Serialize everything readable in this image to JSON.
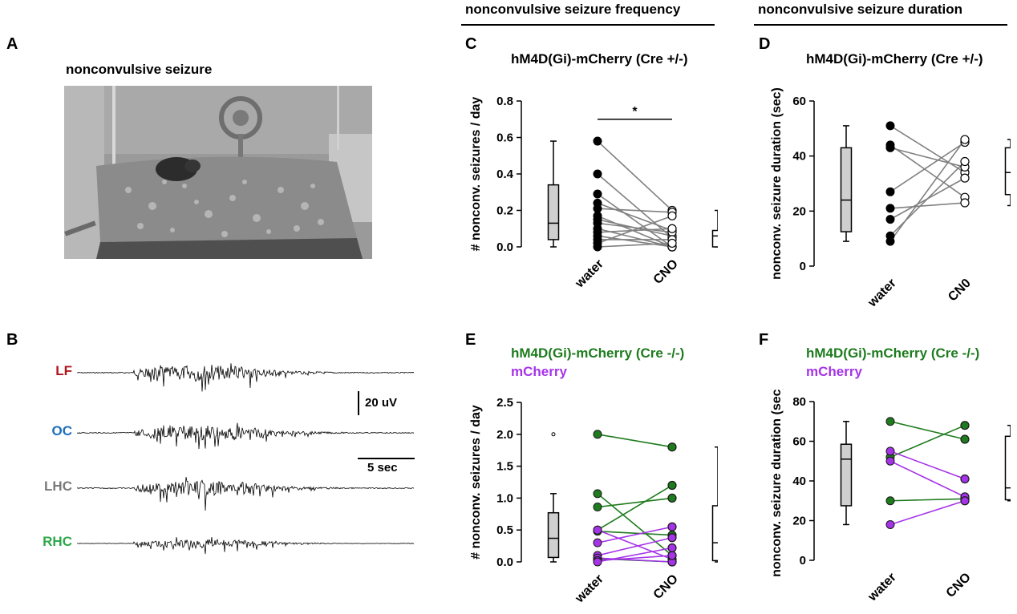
{
  "panels": {
    "A": "A",
    "B": "B",
    "C": "C",
    "D": "D",
    "E": "E",
    "F": "F"
  },
  "section_headers": {
    "frequency": "nonconvulsive seizure frequency",
    "duration": "nonconvulsive seizure duration"
  },
  "panelA": {
    "title": "nonconvulsive seizure"
  },
  "panelB": {
    "channels": [
      {
        "name": "LF",
        "color": "#b3141c"
      },
      {
        "name": "OC",
        "color": "#1f6fba"
      },
      {
        "name": "LHC",
        "color": "#7a7a7a"
      },
      {
        "name": "RHC",
        "color": "#2ea84a"
      }
    ],
    "scale_amplitude": "20 uV",
    "scale_time": "5 sec"
  },
  "colors": {
    "green": "#1e7b1e",
    "purple": "#a533e8",
    "box_fill": "#cfcfcf"
  },
  "chart_data": [
    {
      "id": "C",
      "type": "scatter",
      "title": "hM4D(Gi)-mCherry (Cre +/-)",
      "ylabel": "# nonconv. seizures / day",
      "xlabel": "",
      "categories": [
        "water",
        "CNO"
      ],
      "ylim": [
        0,
        0.8
      ],
      "yticks": [
        "0.0",
        "0.2",
        "0.4",
        "0.6",
        "0.8"
      ],
      "significance": "*",
      "pairs": [
        [
          0.58,
          0.2
        ],
        [
          0.4,
          0.05
        ],
        [
          0.29,
          0.0
        ],
        [
          0.24,
          0.09
        ],
        [
          0.21,
          0.19
        ],
        [
          0.17,
          0.0
        ],
        [
          0.15,
          0.06
        ],
        [
          0.13,
          0.08
        ],
        [
          0.1,
          0.0
        ],
        [
          0.08,
          0.1
        ],
        [
          0.06,
          0.0
        ],
        [
          0.04,
          0.04
        ],
        [
          0.02,
          0.17
        ],
        [
          0.0,
          0.02
        ]
      ],
      "boxes": {
        "water": {
          "min": 0.0,
          "q1": 0.04,
          "median": 0.13,
          "q3": 0.34,
          "max": 0.58,
          "fill": "gray"
        },
        "CNO": {
          "min": 0.0,
          "q1": 0.0,
          "median": 0.06,
          "q3": 0.09,
          "max": 0.2,
          "fill": "white"
        }
      }
    },
    {
      "id": "D",
      "type": "scatter",
      "title": "hM4D(Gi)-mCherry (Cre +/-)",
      "ylabel": "nonconv. seizure duration (sec)",
      "xlabel": "",
      "categories": [
        "water",
        "CN0"
      ],
      "ylim": [
        0,
        60
      ],
      "yticks": [
        "0",
        "20",
        "40",
        "60"
      ],
      "pairs": [
        [
          51,
          34
        ],
        [
          44,
          25
        ],
        [
          43,
          36
        ],
        [
          27,
          45
        ],
        [
          21,
          23
        ],
        [
          17,
          32
        ],
        [
          11,
          38
        ],
        [
          9,
          46
        ]
      ],
      "boxes": {
        "water": {
          "min": 9,
          "q1": 12.5,
          "median": 24,
          "q3": 43,
          "max": 51,
          "fill": "gray"
        },
        "CN0": {
          "min": 22,
          "q1": 26,
          "median": 34,
          "q3": 43,
          "max": 46,
          "fill": "white"
        }
      }
    },
    {
      "id": "E",
      "type": "scatter",
      "title": "hM4D(Gi)-mCherry (Cre -/-)",
      "subtitle": "mCherry",
      "ylabel": "# nonconv. seizures / day",
      "xlabel": "",
      "categories": [
        "water",
        "CNO"
      ],
      "ylim": [
        0,
        2.5
      ],
      "yticks": [
        "0.0",
        "0.5",
        "1.0",
        "1.5",
        "2.0",
        "2.5"
      ],
      "series": [
        {
          "color": "green",
          "pairs": [
            [
              2.0,
              1.8
            ],
            [
              1.07,
              0.1
            ],
            [
              0.86,
              1.0
            ],
            [
              0.5,
              1.2
            ],
            [
              0.48,
              0.42
            ],
            [
              0.05,
              0.0
            ]
          ]
        },
        {
          "color": "purple",
          "pairs": [
            [
              0.5,
              0.04
            ],
            [
              0.3,
              0.55
            ],
            [
              0.1,
              0.38
            ],
            [
              0.06,
              0.0
            ],
            [
              0.02,
              0.1
            ],
            [
              0.0,
              0.22
            ]
          ]
        }
      ],
      "outlier": 2.0,
      "boxes": {
        "water": {
          "min": 0.0,
          "q1": 0.07,
          "median": 0.37,
          "q3": 0.77,
          "max": 1.07,
          "fill": "gray"
        },
        "CNO": {
          "min": 0.0,
          "q1": 0.02,
          "median": 0.3,
          "q3": 0.88,
          "max": 1.8,
          "fill": "white"
        }
      }
    },
    {
      "id": "F",
      "type": "scatter",
      "title": "hM4D(Gi)-mCherry (Cre -/-)",
      "subtitle": "mCherry",
      "ylabel": "nonconv. seizure duration (sec)",
      "xlabel": "",
      "categories": [
        "water",
        "CNO"
      ],
      "ylim": [
        0,
        80
      ],
      "yticks": [
        "0",
        "20",
        "40",
        "60",
        "80"
      ],
      "series": [
        {
          "color": "green",
          "pairs": [
            [
              70,
              61
            ],
            [
              52,
              68
            ],
            [
              30,
              31
            ]
          ]
        },
        {
          "color": "purple",
          "pairs": [
            [
              55,
              41
            ],
            [
              50,
              32
            ],
            [
              18,
              30
            ]
          ]
        }
      ],
      "boxes": {
        "water": {
          "min": 18,
          "q1": 27.5,
          "median": 51,
          "q3": 58.5,
          "max": 70,
          "fill": "gray"
        },
        "CNO": {
          "min": 30,
          "q1": 30.5,
          "median": 36.5,
          "q3": 62.5,
          "max": 68,
          "fill": "white"
        }
      }
    }
  ]
}
